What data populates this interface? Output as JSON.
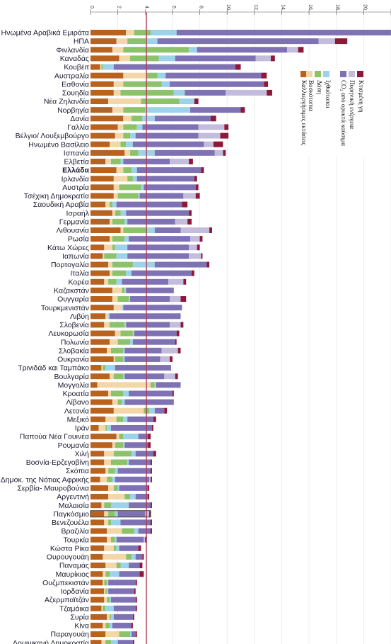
{
  "chart_data": {
    "type": "bar",
    "orientation": "horizontal",
    "stacked": true,
    "axis": {
      "ticks": [
        "0",
        "2",
        "4",
        "6",
        "8",
        "10",
        "12",
        "14",
        "16",
        "18",
        "20",
        "22"
      ],
      "xlim": [
        0,
        22
      ],
      "grid": true,
      "reference_line": 4.1,
      "position": "top"
    },
    "legend": {
      "placement": "top-right-rotated",
      "items": [
        {
          "key": "land",
          "label": "Καλλιεργήσιμες εκτάσεις",
          "color": "#b8621e"
        },
        {
          "key": "grazing",
          "label": "Βοσκότοπια",
          "color": "#f3d7a8"
        },
        {
          "key": "forest",
          "label": "Δάση",
          "color": "#8cc26a"
        },
        {
          "key": "fish",
          "label": "Ιχθυότοποι",
          "color": "#9cd3ea"
        },
        {
          "key": "co2",
          "label": "CO₂ από ορυκτά καύσιμα",
          "color": "#7e72b4"
        },
        {
          "key": "nuclear",
          "label": "Πυρηνική ενέργεια",
          "color": "#c4bcdc"
        },
        {
          "key": "builtup",
          "label": "Κτισμένη γη",
          "color": "#8e1838"
        }
      ]
    },
    "categories": [
      "Ηνωμένα Αραβικά Εμιράτα",
      "ΗΠΑ",
      "Φινλανδία",
      "Καναδάς",
      "Κουβέιτ",
      "Αυστραλία",
      "Εσθονία",
      "Σουηδία",
      "Νέα Ζηλανδία",
      "Νορβηγία",
      "Δανία",
      "Γαλλία",
      "Βέλγιο/ Λουξεμβούργο",
      "Ηνωμένο Βασίλειο",
      "Ισπανία",
      "Ελβετία",
      "Ελλάδα",
      "Ιρλανδία",
      "Αυστρία",
      "Τσέχικη Δημοκρατία",
      "Σαουδική Αραβία",
      "Ισραήλ",
      "Γερμανία",
      "Λιθουανία",
      "Ρωσία",
      "Κάτω Χώρες",
      "Ιαπωνία",
      "Πορτογαλία",
      "Ιταλία",
      "Κορέα",
      "Καζακστάν",
      "Ουγγαρία",
      "Τουρκμενιστάν",
      "Λιβύη",
      "Σλοβενία",
      "Λευκορωσία",
      "Πολωνία",
      "Σλοβακία",
      "Ουκρανία",
      "Τρινιδάδ και Ταμπάκο",
      "Βουλγαρία",
      "Μογγολία",
      "Κροατία",
      "Λίβανο",
      "Λετονία",
      "Μεξικό",
      "Ιράν",
      "Παπούα Νέα Γουινέα",
      "Ρουμανία",
      "Χιλή",
      "Βοσνία-Ερζεγοβίνη",
      "Σκόπια",
      "Δημοκ. της Νότιας Αφρικής",
      "Σερβία- Μαυροβούνια",
      "Αργεντινή",
      "Μαλαισία",
      "Παγκόσμιο",
      "Βενεζουέλα",
      "Βραζιλία",
      "Τουρκία",
      "Κώστα Ρίκα",
      "Ουρουγουάη",
      "Παναμάς",
      "Μαυρίκιος",
      "Ουζμπεκιστάν",
      "Ιορδανία",
      "Αζερμπαϊτζάν",
      "Τζαμάικα",
      "Συρία",
      "Κίνα",
      "Παραγουάη",
      "Δομινικανή Δημοκρατία"
    ],
    "bold_category": "Ελλάδα",
    "highlight_category": "Παγκόσμιο",
    "highlight_color": "#c0392b",
    "series_order": [
      "land",
      "grazing",
      "forest",
      "fish",
      "co2",
      "nuclear",
      "builtup"
    ],
    "values": [
      [
        2.6,
        0.6,
        1.2,
        1.9,
        18.8,
        0.6,
        0.4
      ],
      [
        1.9,
        0.8,
        1.4,
        0.8,
        11.8,
        1.2,
        0.9
      ],
      [
        1.6,
        0.8,
        4.8,
        0.6,
        6.6,
        0.8,
        0.4
      ],
      [
        2.1,
        0.8,
        2.1,
        1.2,
        5.9,
        1.1,
        0.3
      ],
      [
        0.7,
        0.1,
        0.1,
        0.8,
        8.9,
        0.0,
        0.4
      ],
      [
        2.4,
        1.7,
        0.8,
        0.6,
        7.0,
        0.0,
        0.4
      ],
      [
        1.7,
        0.7,
        2.8,
        0.6,
        6.9,
        0.0,
        0.3
      ],
      [
        1.7,
        0.5,
        3.9,
        0.8,
        3.0,
        3.0,
        0.4
      ],
      [
        1.3,
        2.4,
        2.8,
        1.1,
        0.0,
        0.0,
        0.3
      ],
      [
        1.6,
        0.8,
        1.6,
        3.3,
        3.7,
        0.0,
        0.3
      ],
      [
        2.4,
        0.6,
        0.8,
        0.9,
        4.1,
        0.0,
        0.4
      ],
      [
        2.0,
        0.4,
        1.0,
        0.4,
        4.1,
        1.9,
        0.3
      ],
      [
        1.8,
        0.6,
        0.5,
        0.4,
        4.6,
        1.6,
        0.6
      ],
      [
        1.4,
        0.8,
        0.4,
        0.5,
        5.2,
        0.7,
        0.7
      ],
      [
        2.5,
        0.4,
        0.6,
        1.2,
        4.4,
        0.6,
        0.2
      ],
      [
        1.1,
        0.4,
        0.7,
        0.2,
        3.4,
        1.4,
        0.3
      ],
      [
        1.9,
        0.5,
        0.6,
        0.4,
        4.7,
        0.0,
        0.2
      ],
      [
        1.7,
        1.0,
        0.4,
        0.3,
        4.2,
        0.0,
        0.2
      ],
      [
        1.7,
        0.4,
        1.6,
        0.2,
        3.8,
        0.0,
        0.2
      ],
      [
        1.7,
        0.3,
        1.5,
        0.1,
        3.2,
        0.9,
        0.3
      ],
      [
        1.1,
        0.3,
        0.2,
        0.3,
        4.8,
        0.0,
        0.4
      ],
      [
        1.6,
        0.2,
        0.4,
        0.4,
        4.6,
        0.0,
        0.2
      ],
      [
        1.4,
        0.2,
        0.9,
        0.2,
        3.5,
        0.9,
        0.3
      ],
      [
        2.2,
        0.2,
        1.7,
        0.6,
        1.9,
        2.1,
        0.2
      ],
      [
        1.4,
        0.2,
        0.9,
        0.3,
        4.5,
        0.7,
        0.2
      ],
      [
        1.0,
        0.6,
        0.2,
        0.9,
        4.5,
        0.6,
        0.2
      ],
      [
        0.9,
        0.1,
        0.9,
        0.8,
        4.5,
        0.9,
        0.1
      ],
      [
        1.3,
        0.3,
        1.5,
        1.6,
        3.8,
        0.0,
        0.2
      ],
      [
        1.4,
        0.2,
        1.0,
        0.4,
        4.4,
        0.0,
        0.2
      ],
      [
        1.0,
        0.3,
        0.6,
        0.4,
        3.4,
        1.1,
        0.2
      ],
      [
        1.6,
        0.7,
        0.2,
        0.1,
        3.5,
        0.0,
        0.0
      ],
      [
        1.6,
        0.4,
        0.8,
        0.1,
        2.9,
        0.8,
        0.4
      ],
      [
        1.7,
        0.6,
        0.0,
        0.1,
        4.3,
        0.0,
        0.0
      ],
      [
        1.1,
        0.2,
        0.0,
        0.1,
        5.2,
        0.0,
        0.0
      ],
      [
        1.0,
        0.4,
        1.1,
        0.1,
        3.2,
        0.8,
        0.2
      ],
      [
        1.8,
        0.4,
        0.9,
        0.1,
        3.1,
        0.0,
        0.2
      ],
      [
        1.4,
        0.6,
        0.9,
        0.2,
        3.1,
        0.0,
        0.1
      ],
      [
        1.2,
        0.3,
        0.9,
        0.1,
        2.7,
        1.2,
        0.2
      ],
      [
        1.7,
        0.1,
        0.6,
        0.1,
        2.6,
        0.7,
        0.2
      ],
      [
        0.8,
        0.1,
        0.2,
        0.7,
        4.1,
        0.0,
        0.0
      ],
      [
        1.4,
        0.3,
        0.7,
        0.1,
        2.9,
        0.8,
        0.2
      ],
      [
        0.5,
        3.9,
        0.3,
        0.1,
        1.8,
        0.0,
        0.0
      ],
      [
        1.3,
        0.2,
        0.9,
        0.4,
        3.2,
        0.0,
        0.1
      ],
      [
        1.6,
        0.4,
        0.3,
        0.2,
        3.6,
        0.0,
        0.0
      ],
      [
        1.7,
        2.2,
        0.4,
        0.4,
        0.7,
        0.0,
        0.2
      ],
      [
        1.1,
        0.8,
        0.5,
        0.3,
        1.9,
        0.0,
        0.2
      ],
      [
        0.6,
        0.5,
        0.1,
        0.3,
        3.0,
        0.0,
        0.1
      ],
      [
        1.9,
        0.2,
        0.3,
        1.1,
        0.7,
        0.0,
        0.2
      ],
      [
        1.6,
        0.2,
        0.6,
        0.1,
        1.7,
        0.0,
        0.2
      ],
      [
        1.0,
        0.7,
        1.3,
        0.3,
        1.3,
        0.0,
        0.2
      ],
      [
        1.0,
        0.5,
        1.2,
        0.1,
        1.6,
        0.0,
        0.1
      ],
      [
        1.1,
        0.2,
        0.5,
        0.2,
        2.4,
        0.0,
        0.1
      ],
      [
        0.7,
        0.5,
        0.4,
        0.2,
        2.5,
        0.1,
        0.1
      ],
      [
        1.3,
        0.4,
        0.3,
        0.1,
        2.1,
        0.0,
        0.1
      ],
      [
        1.3,
        1.2,
        0.4,
        0.4,
        0.9,
        0.0,
        0.1
      ],
      [
        0.8,
        0.2,
        0.5,
        1.3,
        1.6,
        0.0,
        0.1
      ],
      [
        1.0,
        0.3,
        0.5,
        0.2,
        2.0,
        0.3,
        0.1
      ],
      [
        1.0,
        0.3,
        0.2,
        0.7,
        2.2,
        0.0,
        0.1
      ],
      [
        1.2,
        1.1,
        0.9,
        0.3,
        0.9,
        0.0,
        0.1
      ],
      [
        1.2,
        0.3,
        0.3,
        0.1,
        2.0,
        0.1,
        0.1
      ],
      [
        1.0,
        0.7,
        0.2,
        0.2,
        1.4,
        0.0,
        0.2
      ],
      [
        0.9,
        1.7,
        0.4,
        0.3,
        0.5,
        0.0,
        0.1
      ],
      [
        1.1,
        0.8,
        0.3,
        0.6,
        0.8,
        0.0,
        0.2
      ],
      [
        0.9,
        0.2,
        0.3,
        0.7,
        1.5,
        0.0,
        0.3
      ],
      [
        0.9,
        0.1,
        0.2,
        0.1,
        2.0,
        0.0,
        0.1
      ],
      [
        1.0,
        0.1,
        0.1,
        0.1,
        1.9,
        0.0,
        0.1
      ],
      [
        1.0,
        0.2,
        0.2,
        0.1,
        1.8,
        0.0,
        0.1
      ],
      [
        0.8,
        0.1,
        0.2,
        0.6,
        1.6,
        0.0,
        0.1
      ],
      [
        1.2,
        0.2,
        0.1,
        0.2,
        1.4,
        0.0,
        0.1
      ],
      [
        0.9,
        0.2,
        0.3,
        0.2,
        1.4,
        0.0,
        0.1
      ],
      [
        1.1,
        1.0,
        0.8,
        0.1,
        0.3,
        0.0,
        0.1
      ],
      [
        0.8,
        0.3,
        0.4,
        0.5,
        1.1,
        0.0,
        0.1
      ]
    ]
  }
}
